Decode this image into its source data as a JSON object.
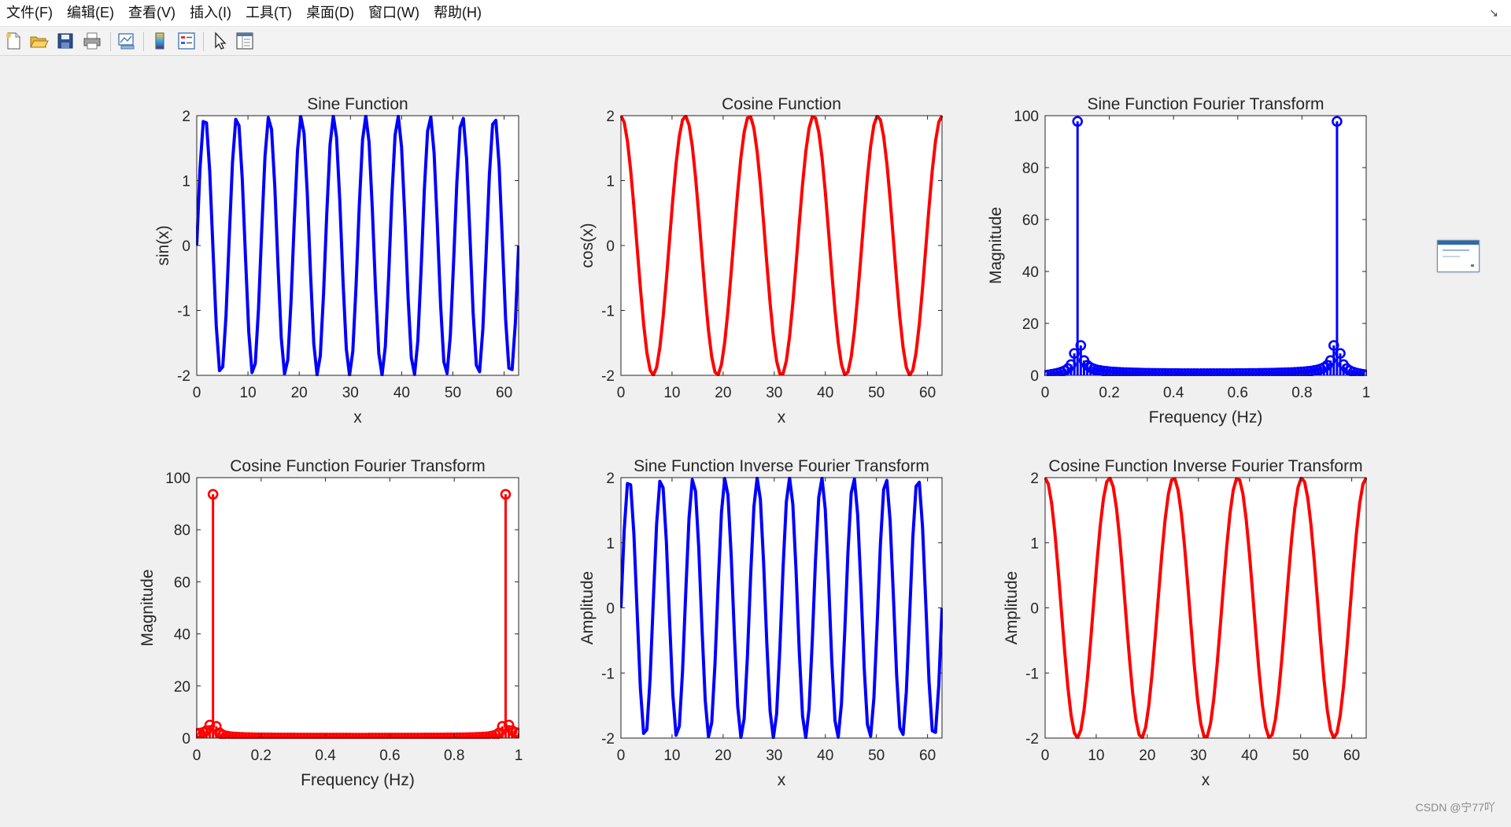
{
  "menu": {
    "items": [
      "文件(F)",
      "编辑(E)",
      "查看(V)",
      "插入(I)",
      "工具(T)",
      "桌面(D)",
      "窗口(W)",
      "帮助(H)"
    ],
    "collapse_glyph": "↘"
  },
  "toolbar": {
    "buttons": [
      {
        "name": "new-figure-icon",
        "color": "#e8e8e8"
      },
      {
        "name": "open-file-icon",
        "color": "#f2c94c"
      },
      {
        "name": "save-icon",
        "color": "#2c4f8f"
      },
      {
        "name": "print-icon",
        "color": "#7a7a7a"
      },
      {
        "name": "link-plot-icon",
        "color": "#4a7ab5"
      },
      {
        "name": "insert-colorbar-icon",
        "color": "#4aa3df"
      },
      {
        "name": "insert-legend-icon",
        "color": "#4a7ab5"
      },
      {
        "name": "edit-plot-arrow-icon",
        "color": "#222222"
      },
      {
        "name": "property-inspector-icon",
        "color": "#4a7ab5"
      }
    ]
  },
  "colors": {
    "blue": "#0000ff",
    "red": "#ff0000",
    "axis": "#262626"
  },
  "watermark": "CSDN @宁77吖",
  "chart_data": [
    {
      "type": "line",
      "title": "Sine Function",
      "xlabel": "x",
      "ylabel": "sin(x)",
      "xlim": [
        0,
        62.83
      ],
      "ylim": [
        -2,
        2
      ],
      "xticks": [
        0,
        10,
        20,
        30,
        40,
        50,
        60
      ],
      "yticks": [
        -2,
        -1,
        0,
        1,
        2
      ],
      "grid": false,
      "series": [
        {
          "function": "2*sin(x)",
          "color": "#0000ff",
          "samples": 100
        }
      ]
    },
    {
      "type": "line",
      "title": "Cosine Function",
      "xlabel": "x",
      "ylabel": "cos(x)",
      "xlim": [
        0,
        62.83
      ],
      "ylim": [
        -2,
        2
      ],
      "xticks": [
        0,
        10,
        20,
        30,
        40,
        50,
        60
      ],
      "yticks": [
        -2,
        -1,
        0,
        1,
        2
      ],
      "grid": false,
      "series": [
        {
          "function": "2*cos(0.5*x)",
          "color": "#ff0000",
          "samples": 100
        }
      ]
    },
    {
      "type": "stem",
      "title": "Sine Function Fourier Transform",
      "xlabel": "Frequency (Hz)",
      "ylabel": "Magnitude",
      "xlim": [
        0,
        1
      ],
      "ylim": [
        0,
        100
      ],
      "xticks": [
        0,
        0.2,
        0.4,
        0.6,
        0.8,
        1
      ],
      "yticks": [
        0,
        20,
        40,
        60,
        80,
        100
      ],
      "grid": false,
      "series": [
        {
          "spectrum_of": "2*sin(x)",
          "color": "#0000ff",
          "points": 100,
          "peaks": [
            {
              "x": 0.1,
              "y": 97.8
            },
            {
              "x": 0.9,
              "y": 97.8
            }
          ]
        }
      ]
    },
    {
      "type": "stem",
      "title": "Cosine Function Fourier Transform",
      "xlabel": "Frequency (Hz)",
      "ylabel": "Magnitude",
      "xlim": [
        0,
        1
      ],
      "ylim": [
        0,
        100
      ],
      "xticks": [
        0,
        0.2,
        0.4,
        0.6,
        0.8,
        1
      ],
      "yticks": [
        0,
        20,
        40,
        60,
        80,
        100
      ],
      "grid": false,
      "series": [
        {
          "spectrum_of": "2*cos(0.5*x)",
          "color": "#ff0000",
          "points": 100,
          "peaks": [
            {
              "x": 0.05,
              "y": 93.6
            },
            {
              "x": 0.96,
              "y": 93.6
            }
          ]
        }
      ]
    },
    {
      "type": "line",
      "title": "Sine Function Inverse Fourier Transform",
      "xlabel": "x",
      "ylabel": "Amplitude",
      "xlim": [
        0,
        62.83
      ],
      "ylim": [
        -2,
        2
      ],
      "xticks": [
        0,
        10,
        20,
        30,
        40,
        50,
        60
      ],
      "yticks": [
        -2,
        -1,
        0,
        1,
        2
      ],
      "grid": false,
      "series": [
        {
          "function": "2*sin(x)",
          "color": "#0000ff",
          "samples": 100
        }
      ]
    },
    {
      "type": "line",
      "title": "Cosine Function Inverse Fourier Transform",
      "xlabel": "x",
      "ylabel": "Amplitude",
      "xlim": [
        0,
        62.83
      ],
      "ylim": [
        -2,
        2
      ],
      "xticks": [
        0,
        10,
        20,
        30,
        40,
        50,
        60
      ],
      "yticks": [
        -2,
        -1,
        0,
        1,
        2
      ],
      "grid": false,
      "series": [
        {
          "function": "2*cos(0.5*x)",
          "color": "#ff0000",
          "samples": 100
        }
      ]
    }
  ]
}
